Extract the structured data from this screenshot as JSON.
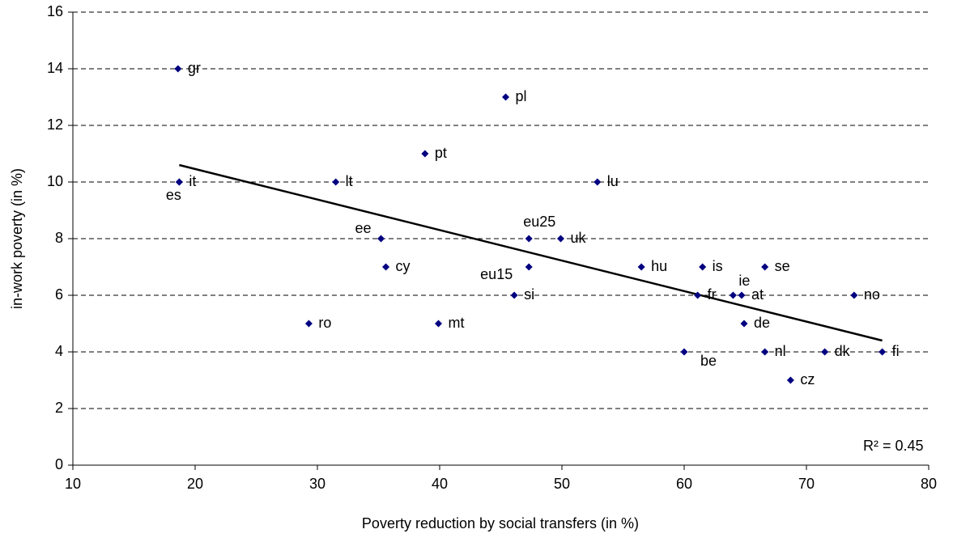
{
  "chart_data": {
    "type": "scatter",
    "xlabel": "Poverty reduction by social transfers (in %)",
    "ylabel": "in-work poverty (in %)",
    "xlim": [
      10,
      80
    ],
    "xticks": [
      10,
      20,
      30,
      40,
      50,
      60,
      70,
      80
    ],
    "ylim": [
      0,
      16
    ],
    "yticks": [
      0,
      2,
      4,
      6,
      8,
      10,
      12,
      14,
      16
    ],
    "grid": true,
    "color": "#000080",
    "labels": [
      "gr",
      "it",
      "es",
      "lt",
      "pt",
      "pl",
      "lu",
      "ee",
      "eu25",
      "uk",
      "cy",
      "eu15",
      "hu",
      "is",
      "se",
      "si",
      "fr",
      "ie",
      "at",
      "no",
      "ro",
      "mt",
      "de",
      "be",
      "nl",
      "dk",
      "fi",
      "cz"
    ],
    "x": [
      18.6,
      18.7,
      18.7,
      31.5,
      38.8,
      45.4,
      52.9,
      35.2,
      47.3,
      49.9,
      35.6,
      47.3,
      56.5,
      61.5,
      66.6,
      46.1,
      61.1,
      64.0,
      64.7,
      73.9,
      29.3,
      39.9,
      64.9,
      60.0,
      66.6,
      71.5,
      76.2,
      68.7
    ],
    "y": [
      14,
      10,
      10,
      10,
      11,
      13,
      10,
      8,
      8,
      8,
      7,
      7,
      7,
      7,
      7,
      6,
      6,
      6,
      6,
      6,
      5,
      5,
      5,
      4,
      4,
      4,
      4,
      3
    ],
    "trendline": {
      "x": [
        18.7,
        76.2
      ],
      "y": [
        10.6,
        4.4
      ],
      "color": "#000000"
    },
    "annotation": "R² = 0.45"
  }
}
